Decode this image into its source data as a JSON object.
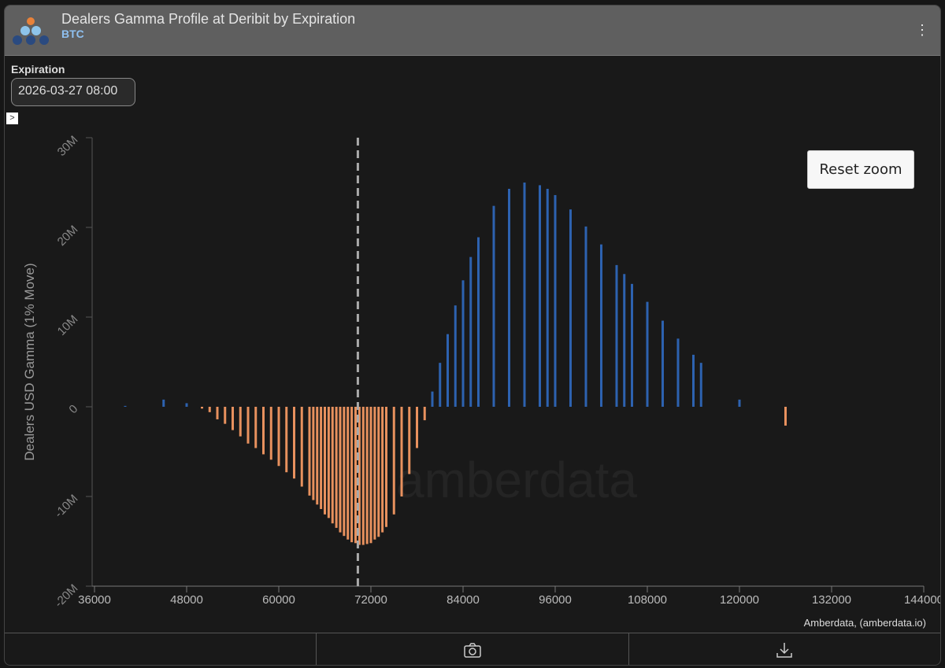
{
  "header": {
    "title": "Dealers Gamma Profile at Deribit by Expiration",
    "subtitle": "BTC",
    "menu_icon": "kebab-menu-icon"
  },
  "controls": {
    "expiration_label": "Expiration",
    "expiration_value": "2026-03-27 08:00",
    "toggle_glyph": ">"
  },
  "reset_zoom_label": "Reset zoom",
  "credit": "Amberdata, (amberdata.io)",
  "watermark": "amberdata",
  "colors": {
    "positive": "#2d62b0",
    "negative": "#e8915e",
    "spot_line": "#aaaaaa"
  },
  "footer": {
    "icons": [
      "camera-icon",
      "download-icon"
    ]
  },
  "chart_data": {
    "type": "bar",
    "title": "Dealers Gamma Profile at Deribit by Expiration",
    "xlabel": "",
    "ylabel": "Dealers USD Gamma (1% Move)",
    "xlim": [
      35500,
      145000
    ],
    "ylim": [
      -20,
      30
    ],
    "y_unit": "M",
    "x_ticks": [
      "36000",
      "48000",
      "60000",
      "72000",
      "84000",
      "96000",
      "108000",
      "120000",
      "132000",
      "144000"
    ],
    "y_ticks": [
      "-20M",
      "-10M",
      "0",
      "10M",
      "20M",
      "30M"
    ],
    "spot_price": 70300,
    "points": [
      [
        40000,
        0.1
      ],
      [
        45000,
        0.8
      ],
      [
        48000,
        0.4
      ],
      [
        50000,
        -0.2
      ],
      [
        51000,
        -0.6
      ],
      [
        52000,
        -1.4
      ],
      [
        53000,
        -1.9
      ],
      [
        54000,
        -2.6
      ],
      [
        55000,
        -3.3
      ],
      [
        56000,
        -4.1
      ],
      [
        57000,
        -4.6
      ],
      [
        58000,
        -5.3
      ],
      [
        59000,
        -5.9
      ],
      [
        60000,
        -6.6
      ],
      [
        61000,
        -7.3
      ],
      [
        62000,
        -8.0
      ],
      [
        63000,
        -8.9
      ],
      [
        64000,
        -9.9
      ],
      [
        64500,
        -10.4
      ],
      [
        65000,
        -10.9
      ],
      [
        65500,
        -11.4
      ],
      [
        66000,
        -12.0
      ],
      [
        66500,
        -12.4
      ],
      [
        67000,
        -13.0
      ],
      [
        67500,
        -13.5
      ],
      [
        68000,
        -14.0
      ],
      [
        68500,
        -14.4
      ],
      [
        69000,
        -14.8
      ],
      [
        69500,
        -15.1
      ],
      [
        70000,
        -15.2
      ],
      [
        70500,
        -15.4
      ],
      [
        71000,
        -15.4
      ],
      [
        71500,
        -15.3
      ],
      [
        72000,
        -15.2
      ],
      [
        72500,
        -14.8
      ],
      [
        73000,
        -14.5
      ],
      [
        73500,
        -14.0
      ],
      [
        74000,
        -13.4
      ],
      [
        75000,
        -12.0
      ],
      [
        76000,
        -10.0
      ],
      [
        77000,
        -7.5
      ],
      [
        78000,
        -4.6
      ],
      [
        79000,
        -1.5
      ],
      [
        80000,
        1.7
      ],
      [
        81000,
        4.9
      ],
      [
        82000,
        8.1
      ],
      [
        83000,
        11.3
      ],
      [
        84000,
        14.1
      ],
      [
        85000,
        16.7
      ],
      [
        86000,
        18.9
      ],
      [
        88000,
        22.4
      ],
      [
        90000,
        24.3
      ],
      [
        92000,
        25.0
      ],
      [
        94000,
        24.7
      ],
      [
        95000,
        24.3
      ],
      [
        96000,
        23.6
      ],
      [
        98000,
        22.0
      ],
      [
        100000,
        20.1
      ],
      [
        102000,
        18.1
      ],
      [
        104000,
        15.8
      ],
      [
        105000,
        14.8
      ],
      [
        106000,
        13.7
      ],
      [
        108000,
        11.7
      ],
      [
        110000,
        9.6
      ],
      [
        112000,
        7.6
      ],
      [
        114000,
        5.8
      ],
      [
        115000,
        4.9
      ],
      [
        120000,
        0.8
      ],
      [
        126000,
        -2.1
      ]
    ]
  }
}
